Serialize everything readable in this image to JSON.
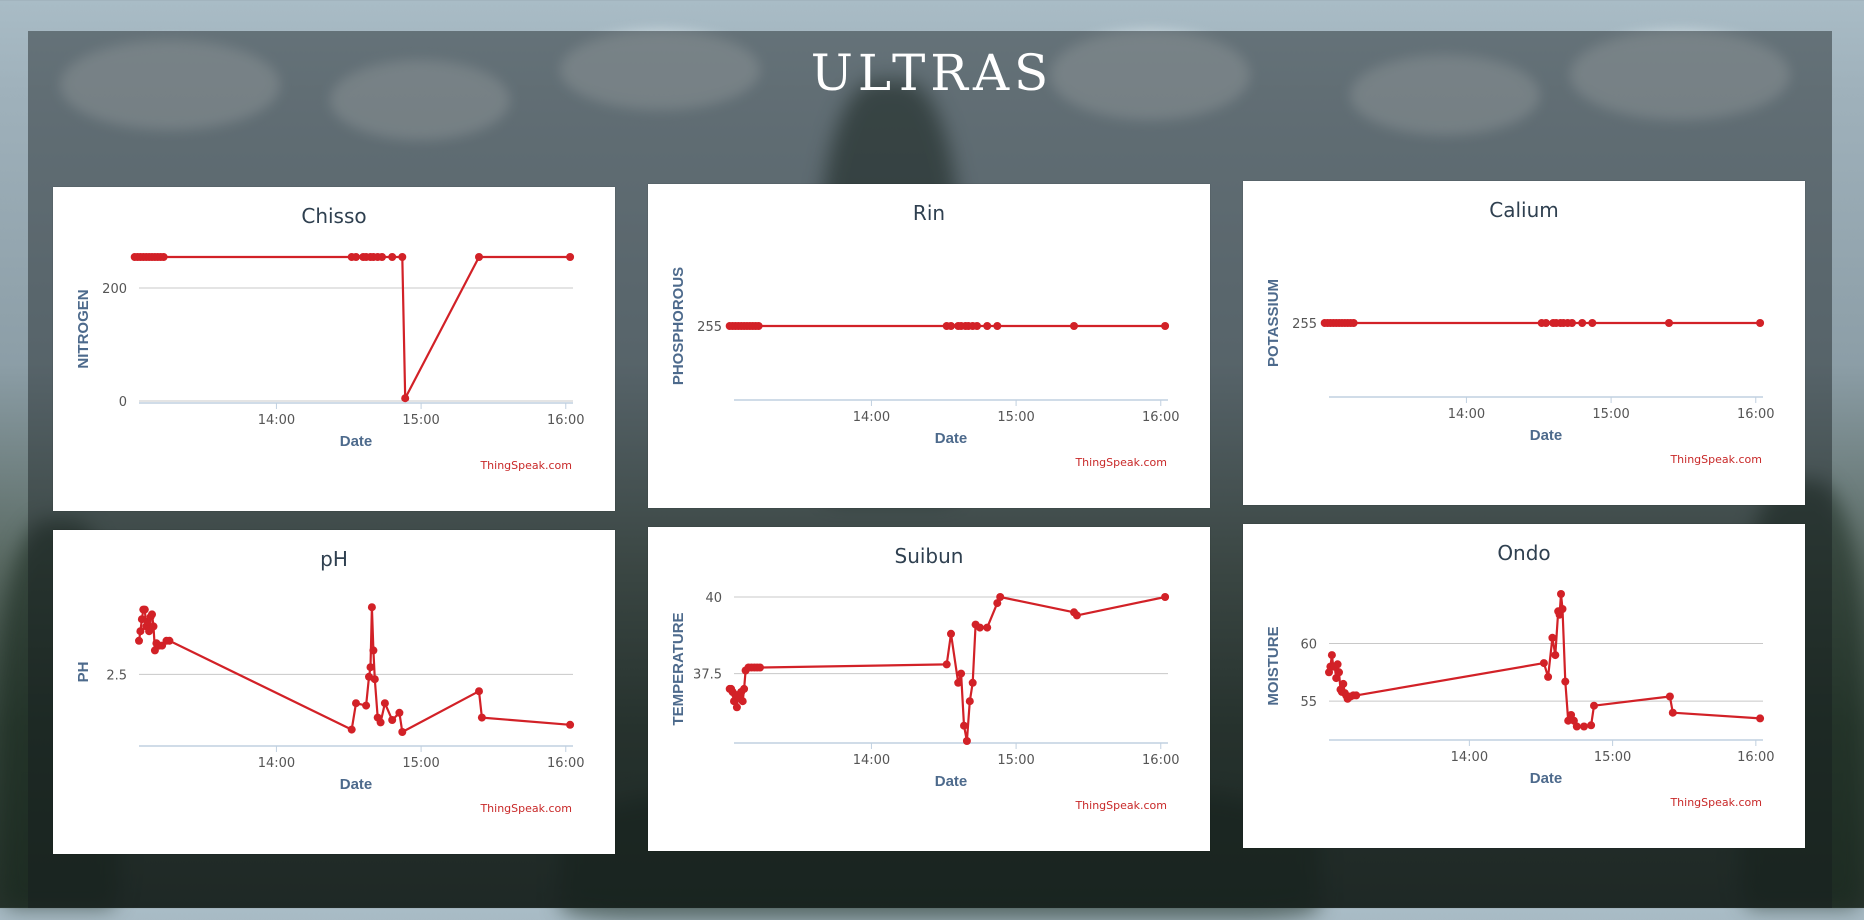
{
  "page": {
    "title": "ULTRAS",
    "credit": "ThingSpeak.com"
  },
  "colors": {
    "series": "#d22127",
    "axis": "#c0d0e0",
    "grid": "#c8c8c8",
    "title": "#2f4050",
    "label": "#4d6a8c"
  },
  "chart_data": [
    {
      "id": "chisso",
      "type": "line",
      "title": "Chisso",
      "xlabel": "Date",
      "ylabel": "NITROGEN",
      "xlim": [
        13.05,
        16.05
      ],
      "ylim": [
        0,
        255
      ],
      "yticks": [
        0,
        200
      ],
      "grid": true,
      "xticks": [
        {
          "v": 14,
          "label": "14:00"
        },
        {
          "v": 15,
          "label": "15:00"
        },
        {
          "v": 16,
          "label": "16:00"
        }
      ],
      "x": [
        13.02,
        13.04,
        13.06,
        13.08,
        13.1,
        13.12,
        13.14,
        13.16,
        13.18,
        13.2,
        13.22,
        14.52,
        14.55,
        14.6,
        14.62,
        14.65,
        14.67,
        14.7,
        14.73,
        14.8,
        14.87,
        14.89,
        15.4,
        16.03
      ],
      "values": [
        255,
        255,
        255,
        255,
        255,
        255,
        255,
        255,
        255,
        255,
        255,
        255,
        255,
        255,
        255,
        255,
        255,
        255,
        255,
        255,
        255,
        5,
        255,
        255
      ]
    },
    {
      "id": "rin",
      "type": "line",
      "title": "Rin",
      "xlabel": "Date",
      "ylabel": "PHOSPHOROUS",
      "xlim": [
        13.05,
        16.05
      ],
      "ylim": [
        254,
        256
      ],
      "yticks": [
        255
      ],
      "grid": false,
      "xticks": [
        {
          "v": 14,
          "label": "14:00"
        },
        {
          "v": 15,
          "label": "15:00"
        },
        {
          "v": 16,
          "label": "16:00"
        }
      ],
      "x": [
        13.02,
        13.04,
        13.06,
        13.08,
        13.1,
        13.12,
        13.14,
        13.16,
        13.18,
        13.2,
        13.22,
        14.52,
        14.55,
        14.6,
        14.62,
        14.65,
        14.67,
        14.7,
        14.73,
        14.8,
        14.87,
        15.4,
        16.03
      ],
      "values": [
        255,
        255,
        255,
        255,
        255,
        255,
        255,
        255,
        255,
        255,
        255,
        255,
        255,
        255,
        255,
        255,
        255,
        255,
        255,
        255,
        255,
        255,
        255
      ]
    },
    {
      "id": "calium",
      "type": "line",
      "title": "Calium",
      "xlabel": "Date",
      "ylabel": "POTASSIUM",
      "xlim": [
        13.05,
        16.05
      ],
      "ylim": [
        254,
        256
      ],
      "yticks": [
        255
      ],
      "grid": false,
      "xticks": [
        {
          "v": 14,
          "label": "14:00"
        },
        {
          "v": 15,
          "label": "15:00"
        },
        {
          "v": 16,
          "label": "16:00"
        }
      ],
      "x": [
        13.02,
        13.04,
        13.06,
        13.08,
        13.1,
        13.12,
        13.14,
        13.16,
        13.18,
        13.2,
        13.22,
        14.52,
        14.55,
        14.6,
        14.62,
        14.65,
        14.67,
        14.7,
        14.73,
        14.8,
        14.87,
        15.4,
        16.03
      ],
      "values": [
        255,
        255,
        255,
        255,
        255,
        255,
        255,
        255,
        255,
        255,
        255,
        255,
        255,
        255,
        255,
        255,
        255,
        255,
        255,
        255,
        255,
        255,
        255
      ]
    },
    {
      "id": "ph",
      "type": "line",
      "title": "pH",
      "xlabel": "Date",
      "ylabel": "PH",
      "xlim": [
        13.05,
        16.05
      ],
      "ylim": [
        2.21,
        2.81
      ],
      "yticks": [
        2.5
      ],
      "grid": true,
      "xticks": [
        {
          "v": 14,
          "label": "14:00"
        },
        {
          "v": 15,
          "label": "15:00"
        },
        {
          "v": 16,
          "label": "16:00"
        }
      ],
      "x": [
        13.05,
        13.06,
        13.07,
        13.08,
        13.09,
        13.1,
        13.11,
        13.12,
        13.13,
        13.14,
        13.15,
        13.16,
        13.17,
        13.19,
        13.21,
        13.24,
        13.26,
        14.52,
        14.55,
        14.62,
        14.64,
        14.65,
        14.66,
        14.67,
        14.68,
        14.7,
        14.72,
        14.75,
        14.8,
        14.85,
        14.87,
        15.4,
        15.42,
        16.03
      ],
      "values": [
        2.64,
        2.68,
        2.73,
        2.77,
        2.77,
        2.7,
        2.72,
        2.68,
        2.74,
        2.75,
        2.7,
        2.6,
        2.63,
        2.62,
        2.62,
        2.64,
        2.64,
        2.27,
        2.38,
        2.37,
        2.49,
        2.53,
        2.78,
        2.6,
        2.48,
        2.32,
        2.3,
        2.38,
        2.31,
        2.34,
        2.26,
        2.43,
        2.32,
        2.29
      ]
    },
    {
      "id": "suibun",
      "type": "line",
      "title": "Suibun",
      "xlabel": "Date",
      "ylabel": "TEMPERATURE",
      "xlim": [
        13.05,
        16.05
      ],
      "ylim": [
        35.3,
        40.0
      ],
      "yticks": [
        37.5,
        40
      ],
      "grid": true,
      "xticks": [
        {
          "v": 14,
          "label": "14:00"
        },
        {
          "v": 15,
          "label": "15:00"
        },
        {
          "v": 16,
          "label": "16:00"
        }
      ],
      "x": [
        13.02,
        13.03,
        13.04,
        13.05,
        13.06,
        13.07,
        13.08,
        13.09,
        13.1,
        13.11,
        13.12,
        13.13,
        13.15,
        13.17,
        13.19,
        13.21,
        13.23,
        14.52,
        14.55,
        14.6,
        14.62,
        14.64,
        14.66,
        14.68,
        14.7,
        14.72,
        14.75,
        14.8,
        14.87,
        14.89,
        15.4,
        15.42,
        16.03
      ],
      "values": [
        37.0,
        37.0,
        36.9,
        36.6,
        36.8,
        36.4,
        36.8,
        36.7,
        36.9,
        36.6,
        37.0,
        37.6,
        37.7,
        37.7,
        37.7,
        37.7,
        37.7,
        37.8,
        38.8,
        37.2,
        37.5,
        35.8,
        35.3,
        36.6,
        37.2,
        39.1,
        39.0,
        39.0,
        39.8,
        40.0,
        39.5,
        39.4,
        40.0
      ]
    },
    {
      "id": "ondo",
      "type": "line",
      "title": "Ondo",
      "xlabel": "Date",
      "ylabel": "MOISTURE",
      "xlim": [
        13.02,
        16.05
      ],
      "ylim": [
        51.8,
        64.3
      ],
      "yticks": [
        55,
        60
      ],
      "grid": true,
      "xticks": [
        {
          "v": 14,
          "label": "14:00"
        },
        {
          "v": 15,
          "label": "15:00"
        },
        {
          "v": 16,
          "label": "16:00"
        }
      ],
      "x": [
        13.02,
        13.03,
        13.04,
        13.05,
        13.06,
        13.07,
        13.08,
        13.09,
        13.1,
        13.11,
        13.12,
        13.13,
        13.14,
        13.15,
        13.17,
        13.19,
        13.21,
        14.52,
        14.55,
        14.58,
        14.6,
        14.62,
        14.63,
        14.64,
        14.65,
        14.67,
        14.69,
        14.71,
        14.73,
        14.75,
        14.8,
        14.85,
        14.87,
        15.4,
        15.42,
        16.03
      ],
      "values": [
        57.5,
        58.0,
        59.0,
        58.0,
        58.0,
        57.0,
        58.2,
        57.5,
        56.0,
        55.8,
        56.5,
        55.7,
        55.5,
        55.2,
        55.4,
        55.5,
        55.5,
        58.3,
        57.1,
        60.5,
        59.0,
        62.8,
        62.5,
        64.3,
        63.0,
        56.7,
        53.3,
        53.8,
        53.3,
        52.8,
        52.8,
        52.9,
        54.6,
        55.4,
        54.0,
        53.5
      ]
    }
  ]
}
